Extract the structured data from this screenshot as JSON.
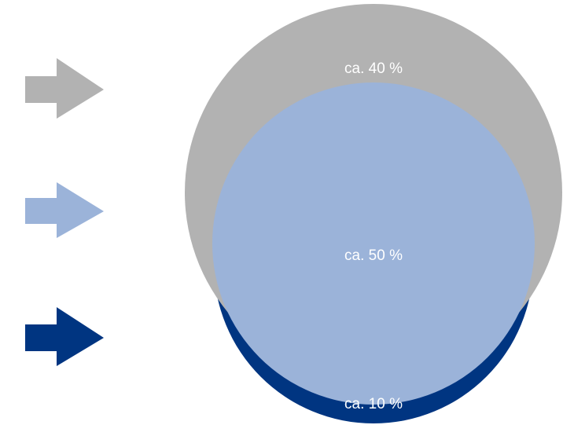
{
  "colors": {
    "background": "#ffffff",
    "outer_circle": "#b2b2b2",
    "middle_circle": "#9bb3d9",
    "inner_segment": "#003581",
    "arrow_gray": "#b2b2b2",
    "arrow_light_blue": "#9bb3d9",
    "arrow_dark_blue": "#003581"
  },
  "arrows": [
    {
      "icon": "right-arrow-icon",
      "color": "#b2b2b2"
    },
    {
      "icon": "right-arrow-icon",
      "color": "#9bb3d9"
    },
    {
      "icon": "right-arrow-icon",
      "color": "#003581"
    }
  ],
  "segments": {
    "gray_label": "ca. 40 %",
    "light_blue_label": "ca. 50 %",
    "dark_blue_label": "ca. 10 %"
  }
}
